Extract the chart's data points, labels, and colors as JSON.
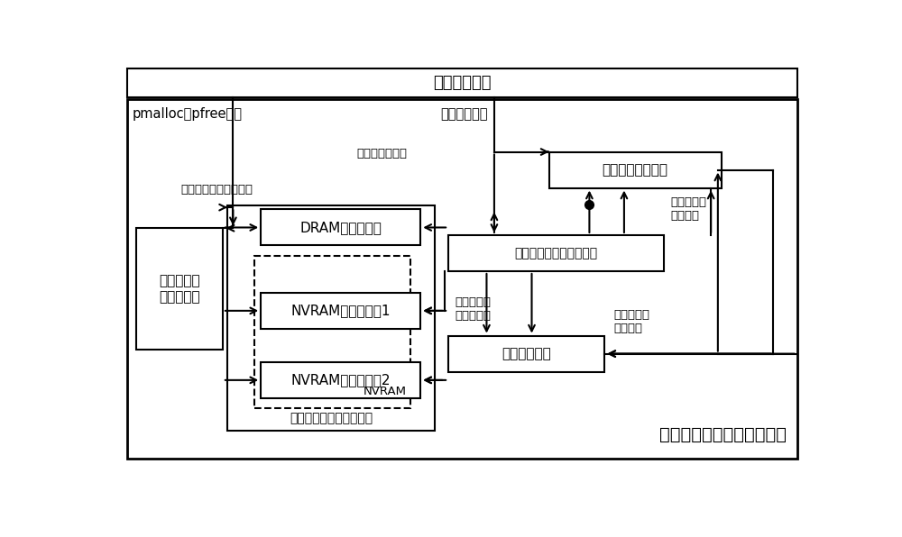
{
  "bg_color": "#ffffff",
  "title": "非易失内存一致性更新系统",
  "label_user_app": "用户应用程序",
  "label_pmalloc": "pmalloc或pfree请求",
  "label_rwaccess": "读写访问请求",
  "label_update_period": "更新周期管理模块",
  "label_nvm_version": "非易失数据版本管理模块",
  "label_dram_pool": "DRAM缓存资源池",
  "label_allocator": "动态非易失\n内存分配器",
  "label_nvram1": "NVRAM非易失备份1",
  "label_nvram2": "NVRAM非易失备份2",
  "label_access_monitor": "访存监控模块",
  "label_dyn_module": "动态非易失内存分配模块",
  "label_nvram_tag": "NVRAM",
  "label_dyn_msg": "动态内存资源更新消息",
  "label_consistency_req": "一致性更新请求",
  "label_consistency_end": "一致性更新\n结束通知",
  "label_page_query": "页面地址集\n合查询请求",
  "label_backup_pages": "待备份页面\n地址集合"
}
